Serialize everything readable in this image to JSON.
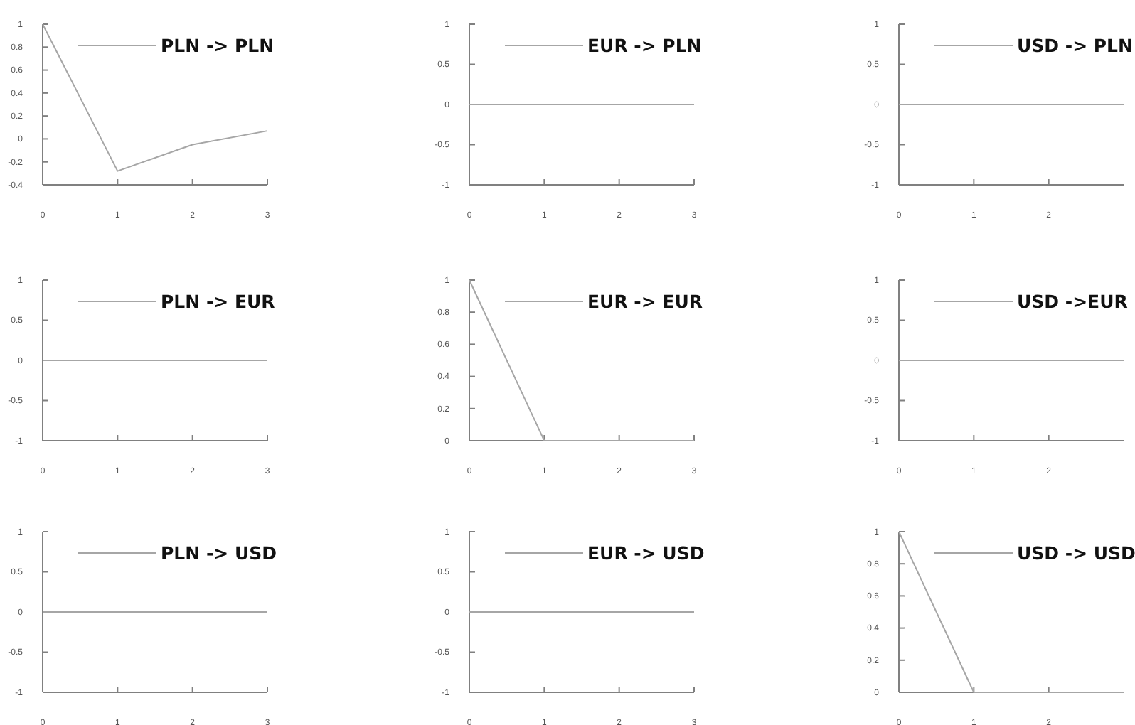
{
  "chart_data": [
    {
      "type": "line",
      "x": [
        0,
        1,
        2,
        3
      ],
      "xlim": [
        0,
        3
      ],
      "xticks": [
        0,
        1,
        2,
        3
      ],
      "ylim": [
        -0.4,
        1
      ],
      "yticks": [
        -0.4,
        -0.2,
        0,
        0.2,
        0.4,
        0.6,
        0.8,
        1
      ],
      "legend": "top right",
      "series": [
        {
          "name": "PLN -> PLN",
          "color": "#a6a6a6",
          "values": [
            1,
            -0.28,
            -0.05,
            0.07
          ]
        }
      ]
    },
    {
      "type": "line",
      "x": [
        0,
        1,
        2,
        3
      ],
      "xlim": [
        0,
        3
      ],
      "xticks": [
        0,
        1,
        2,
        3
      ],
      "ylim": [
        -1,
        1
      ],
      "yticks": [
        -1,
        -0.5,
        0,
        0.5,
        1
      ],
      "legend": "top right",
      "series": [
        {
          "name": "EUR -> PLN",
          "color": "#a6a6a6",
          "values": [
            0,
            0,
            0,
            0
          ]
        }
      ]
    },
    {
      "type": "line",
      "x": [
        0,
        1,
        2,
        3
      ],
      "xlim": [
        0,
        3
      ],
      "xticks": [
        0,
        1,
        2
      ],
      "ylim": [
        -1,
        1
      ],
      "yticks": [
        -1,
        -0.5,
        0,
        0.5,
        1
      ],
      "legend": "top right",
      "series": [
        {
          "name": "USD -> PLN",
          "color": "#a6a6a6",
          "values": [
            0,
            0,
            0,
            0
          ]
        }
      ]
    },
    {
      "type": "line",
      "x": [
        0,
        1,
        2,
        3
      ],
      "xlim": [
        0,
        3
      ],
      "xticks": [
        0,
        1,
        2,
        3
      ],
      "ylim": [
        -1,
        1
      ],
      "yticks": [
        -1,
        -0.5,
        0,
        0.5,
        1
      ],
      "legend": "top right",
      "series": [
        {
          "name": "PLN -> EUR",
          "color": "#a6a6a6",
          "values": [
            0,
            0,
            0,
            0
          ]
        }
      ]
    },
    {
      "type": "line",
      "x": [
        0,
        1,
        2,
        3
      ],
      "xlim": [
        0,
        3
      ],
      "xticks": [
        0,
        1,
        2,
        3
      ],
      "ylim": [
        0,
        1
      ],
      "yticks": [
        0,
        0.2,
        0.4,
        0.6,
        0.8,
        1
      ],
      "legend": "top right",
      "series": [
        {
          "name": "EUR -> EUR",
          "color": "#a6a6a6",
          "values": [
            1,
            0,
            0,
            0
          ]
        }
      ]
    },
    {
      "type": "line",
      "x": [
        0,
        1,
        2,
        3
      ],
      "xlim": [
        0,
        3
      ],
      "xticks": [
        0,
        1,
        2
      ],
      "ylim": [
        -1,
        1
      ],
      "yticks": [
        -1,
        -0.5,
        0,
        0.5,
        1
      ],
      "legend": "top right",
      "series": [
        {
          "name": "USD ->EUR",
          "color": "#a6a6a6",
          "values": [
            0,
            0,
            0,
            0
          ]
        }
      ]
    },
    {
      "type": "line",
      "x": [
        0,
        1,
        2,
        3
      ],
      "xlim": [
        0,
        3
      ],
      "xticks": [
        0,
        1,
        2,
        3
      ],
      "ylim": [
        -1,
        1
      ],
      "yticks": [
        -1,
        -0.5,
        0,
        0.5,
        1
      ],
      "legend": "top right",
      "series": [
        {
          "name": "PLN -> USD",
          "color": "#a6a6a6",
          "values": [
            0,
            0,
            0,
            0
          ]
        }
      ]
    },
    {
      "type": "line",
      "x": [
        0,
        1,
        2,
        3
      ],
      "xlim": [
        0,
        3
      ],
      "xticks": [
        0,
        1,
        2,
        3
      ],
      "ylim": [
        -1,
        1
      ],
      "yticks": [
        -1,
        -0.5,
        0,
        0.5,
        1
      ],
      "legend": "top right",
      "series": [
        {
          "name": "EUR -> USD",
          "color": "#a6a6a6",
          "values": [
            0,
            0,
            0,
            0
          ]
        }
      ]
    },
    {
      "type": "line",
      "x": [
        0,
        1,
        2,
        3
      ],
      "xlim": [
        0,
        3
      ],
      "xticks": [
        0,
        1,
        2
      ],
      "ylim": [
        0,
        1
      ],
      "yticks": [
        0,
        0.2,
        0.4,
        0.6,
        0.8,
        1
      ],
      "legend": "top right",
      "series": [
        {
          "name": "USD -> USD",
          "color": "#a6a6a6",
          "values": [
            1,
            0,
            0,
            0
          ]
        }
      ]
    }
  ]
}
